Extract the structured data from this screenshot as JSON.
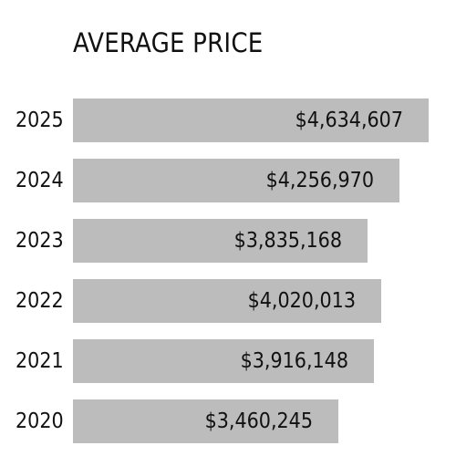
{
  "chart_data": {
    "type": "bar",
    "orientation": "horizontal",
    "title": "AVERAGE PRICE",
    "xlabel": "",
    "ylabel": "",
    "categories": [
      "2025",
      "2024",
      "2023",
      "2022",
      "2021",
      "2020"
    ],
    "values": [
      4634607,
      4256970,
      3835168,
      4020013,
      3916148,
      3460245
    ],
    "value_labels": [
      "$4,634,607",
      "$4,256,970",
      "$3,835,168",
      "$4,020,013",
      "$3,916,148",
      "$3,460,245"
    ],
    "xlim": [
      0,
      4634607
    ],
    "grid": false,
    "legend": "none",
    "bar_color": "#bcbcbd",
    "text_color": "#111111"
  }
}
